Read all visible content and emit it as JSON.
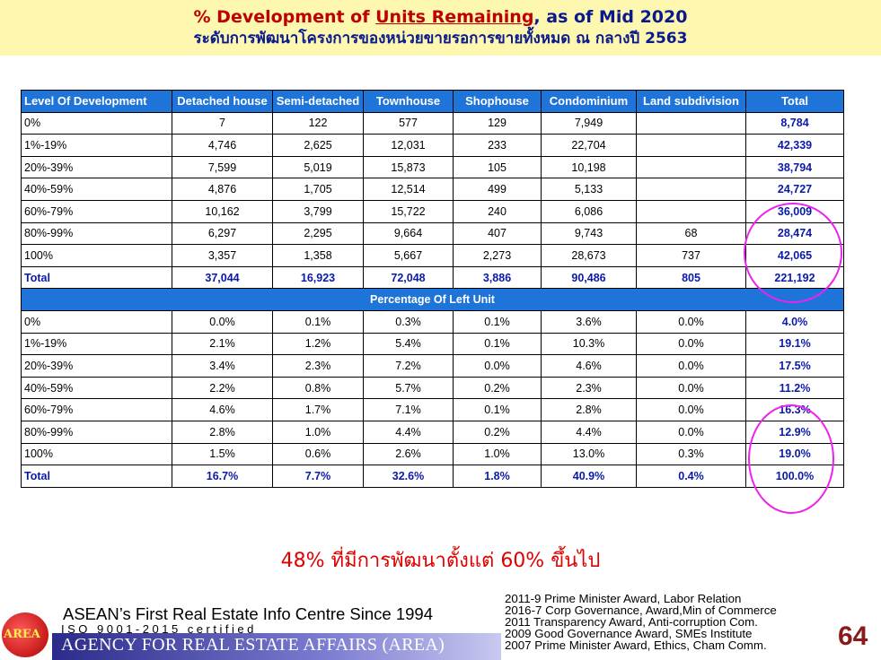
{
  "header": {
    "title_prefix": "% Development of ",
    "title_underlined": "Units Remaining",
    "title_suffix": ", as of Mid 2020",
    "subtitle": "ระดับการพัฒนาโครงการของหน่วยขายรอการขายทั้งหมด ณ กลางปี 2563"
  },
  "table": {
    "columns": [
      "Level Of Development",
      "Detached house",
      "Semi-detached",
      "Townhouse",
      "Shophouse",
      "Condominium",
      "Land subdivision",
      "Total"
    ],
    "units_rows": [
      [
        "0%",
        "7",
        "122",
        "577",
        "129",
        "7,949",
        "",
        "8,784"
      ],
      [
        "1%-19%",
        "4,746",
        "2,625",
        "12,031",
        "233",
        "22,704",
        "",
        "42,339"
      ],
      [
        "20%-39%",
        "7,599",
        "5,019",
        "15,873",
        "105",
        "10,198",
        "",
        "38,794"
      ],
      [
        "40%-59%",
        "4,876",
        "1,705",
        "12,514",
        "499",
        "5,133",
        "",
        "24,727"
      ],
      [
        "60%-79%",
        "10,162",
        "3,799",
        "15,722",
        "240",
        "6,086",
        "",
        "36,009"
      ],
      [
        "80%-99%",
        "6,297",
        "2,295",
        "9,664",
        "407",
        "9,743",
        "68",
        "28,474"
      ],
      [
        "100%",
        "3,357",
        "1,358",
        "5,667",
        "2,273",
        "28,673",
        "737",
        "42,065"
      ]
    ],
    "units_total": [
      "Total",
      "37,044",
      "16,923",
      "72,048",
      "3,886",
      "90,486",
      "805",
      "221,192"
    ],
    "band_label": "Percentage Of Left Unit",
    "pct_rows": [
      [
        "0%",
        "0.0%",
        "0.1%",
        "0.3%",
        "0.1%",
        "3.6%",
        "0.0%",
        "4.0%"
      ],
      [
        "1%-19%",
        "2.1%",
        "1.2%",
        "5.4%",
        "0.1%",
        "10.3%",
        "0.0%",
        "19.1%"
      ],
      [
        "20%-39%",
        "3.4%",
        "2.3%",
        "7.2%",
        "0.0%",
        "4.6%",
        "0.0%",
        "17.5%"
      ],
      [
        "40%-59%",
        "2.2%",
        "0.8%",
        "5.7%",
        "0.2%",
        "2.3%",
        "0.0%",
        "11.2%"
      ],
      [
        "60%-79%",
        "4.6%",
        "1.7%",
        "7.1%",
        "0.1%",
        "2.8%",
        "0.0%",
        "16.3%"
      ],
      [
        "80%-99%",
        "2.8%",
        "1.0%",
        "4.4%",
        "0.2%",
        "4.4%",
        "0.0%",
        "12.9%"
      ],
      [
        "100%",
        "1.5%",
        "0.6%",
        "2.6%",
        "1.0%",
        "13.0%",
        "0.3%",
        "19.0%"
      ]
    ],
    "pct_total": [
      "Total",
      "16.7%",
      "7.7%",
      "32.6%",
      "1.8%",
      "40.9%",
      "0.4%",
      "100.0%"
    ]
  },
  "note": "48% ที่มีการพัฒนาตั้งแต่ 60% ขึ้นไป",
  "footer": {
    "logo_text": "AREA",
    "line1": "ASEAN’s First Real Estate Info Centre Since 1994",
    "line2": "ISO 9001-2015 certified",
    "line3": "AGENCY FOR REAL ESTATE AFFAIRS (AREA)",
    "awards": [
      "2011-9 Prime Minister Award,  Labor Relation",
      "2016-7 Corp Governance, Award,Min of Commerce",
      "2011 Transparency Award, Anti-corruption Com.",
      "2009 Good  Governance Award, SMEs Institute",
      "2007 Prime Minister Award, Ethics, Cham Comm."
    ],
    "page_number": "64"
  },
  "colors": {
    "header_bg": "#fdf7b0",
    "title_red": "#c00000",
    "title_navy": "#0a1a8c",
    "table_header_bg": "#1e74d8",
    "highlight_ellipse": "#ee22ee",
    "note_red": "#e00000"
  }
}
